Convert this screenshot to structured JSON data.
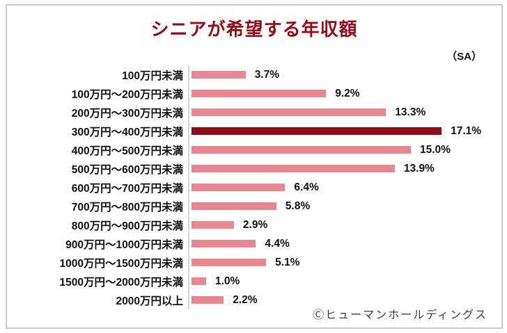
{
  "chart_data": {
    "type": "bar",
    "orientation": "horizontal",
    "title": "シニアが希望する年収額",
    "note": "（SA）",
    "categories": [
      "100万円未満",
      "100万円～200万円未満",
      "200万円～300万円未満",
      "300万円～400万円未満",
      "400万円～500万円未満",
      "500万円～600万円未満",
      "600万円～700万円未満",
      "700万円～800万円未満",
      "800万円～900万円未満",
      "900万円～1000万円未満",
      "1000万円～1500万円未満",
      "1500万円～2000万円未満",
      "2000万円以上"
    ],
    "values": [
      3.7,
      9.2,
      13.3,
      17.1,
      15.0,
      13.9,
      6.4,
      5.8,
      2.9,
      4.4,
      5.1,
      1.0,
      2.2
    ],
    "value_labels": [
      "3.7%",
      "9.2%",
      "13.3%",
      "17.1%",
      "15.0%",
      "13.9%",
      "6.4%",
      "5.8%",
      "2.9%",
      "4.4%",
      "5.1%",
      "1.0%",
      "2.2%"
    ],
    "unit": "%",
    "highlight_index": 3,
    "xlim": [
      0,
      17.1
    ],
    "grid": false,
    "legend": false,
    "colors": {
      "bar": "#e98791",
      "highlight_bar": "#8c0b15",
      "title": "#960b18",
      "axis_line": "#d6d6d6",
      "frame_border": "#c9c9c9",
      "text": "#111111"
    }
  },
  "footer": {
    "credit": "Ⓒヒューマンホールディングス"
  }
}
